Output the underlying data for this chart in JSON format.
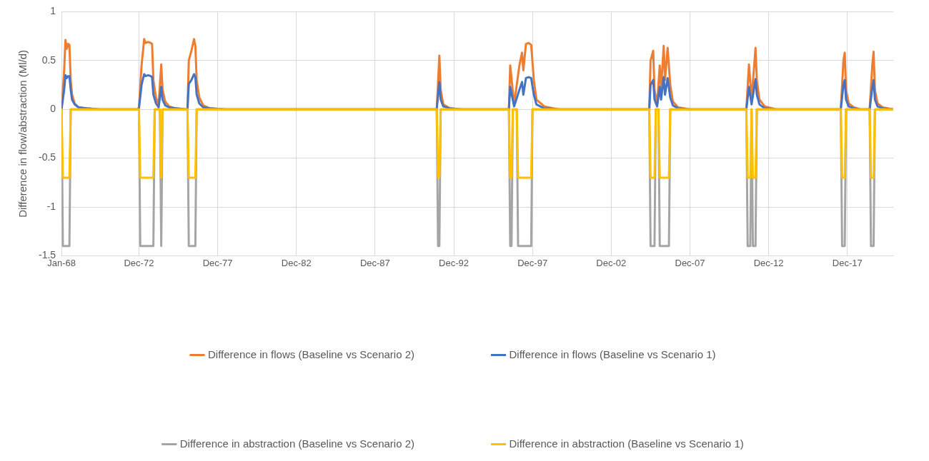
{
  "chart_data": {
    "type": "line",
    "ylabel": "Difference in flow/abstraction (Ml/d)",
    "xlim": [
      "1968-01",
      "2020-11"
    ],
    "xticks": [
      {
        "value": "1968-01",
        "label": "Jan-68"
      },
      {
        "value": "1972-12",
        "label": "Dec-72"
      },
      {
        "value": "1977-12",
        "label": "Dec-77"
      },
      {
        "value": "1982-12",
        "label": "Dec-82"
      },
      {
        "value": "1987-12",
        "label": "Dec-87"
      },
      {
        "value": "1992-12",
        "label": "Dec-92"
      },
      {
        "value": "1997-12",
        "label": "Dec-97"
      },
      {
        "value": "2002-12",
        "label": "Dec-02"
      },
      {
        "value": "2007-12",
        "label": "Dec-07"
      },
      {
        "value": "2012-12",
        "label": "Dec-12"
      },
      {
        "value": "2017-12",
        "label": "Dec-17"
      }
    ],
    "ylim": [
      -1.5,
      1
    ],
    "yticks": [
      -1.5,
      -1,
      -0.5,
      0,
      0.5,
      1
    ],
    "grid": true,
    "legend": "bottom",
    "marker": "none",
    "line_style": "solid",
    "series": [
      {
        "name": "Difference in flows (Baseline vs Scenario 2)",
        "color": "#ed7d31",
        "x": [
          "1968-01",
          "1968-03",
          "1968-04",
          "1968-05",
          "1968-06",
          "1968-07",
          "1968-08",
          "1968-09",
          "1968-11",
          "1969-02",
          "1969-08",
          "1970-06",
          "1972-11",
          "1972-12",
          "1973-02",
          "1973-04",
          "1973-05",
          "1973-07",
          "1973-09",
          "1973-10",
          "1973-11",
          "1974-01",
          "1974-03",
          "1974-05",
          "1974-06",
          "1974-08",
          "1974-11",
          "1975-04",
          "1975-12",
          "1976-01",
          "1976-02",
          "1976-04",
          "1976-06",
          "1976-07",
          "1976-08",
          "1976-10",
          "1977-01",
          "1977-06",
          "1978-06",
          "1991-11",
          "1992-01",
          "1992-02",
          "1992-04",
          "1992-09",
          "1993-06",
          "1996-06",
          "1996-07",
          "1996-10",
          "1997-02",
          "1997-04",
          "1997-05",
          "1997-07",
          "1997-09",
          "1997-11",
          "1998-01",
          "1998-03",
          "1998-09",
          "1999-08",
          "2005-05",
          "2005-06",
          "2005-08",
          "2005-09",
          "2005-11",
          "2006-01",
          "2006-02",
          "2006-04",
          "2006-05",
          "2006-07",
          "2006-09",
          "2006-11",
          "2007-03",
          "2007-12",
          "2011-07",
          "2011-09",
          "2011-11",
          "2012-02",
          "2012-03",
          "2012-05",
          "2012-09",
          "2013-06",
          "2017-07",
          "2017-09",
          "2017-10",
          "2017-11",
          "2018-01",
          "2018-05",
          "2018-10",
          "2019-05",
          "2019-07",
          "2019-08",
          "2019-09",
          "2019-11",
          "2020-03",
          "2020-11"
        ],
        "values": [
          0,
          0.4,
          0.71,
          0.62,
          0.67,
          0.66,
          0.3,
          0.15,
          0.06,
          0.02,
          0.01,
          0,
          0,
          0.02,
          0.45,
          0.72,
          0.68,
          0.69,
          0.68,
          0.67,
          0.3,
          0.12,
          0.05,
          0.46,
          0.2,
          0.08,
          0.03,
          0.01,
          0,
          0,
          0.5,
          0.6,
          0.72,
          0.65,
          0.3,
          0.12,
          0.04,
          0.01,
          0,
          0,
          0.55,
          0.2,
          0.05,
          0.01,
          0,
          0,
          0.45,
          0.05,
          0.45,
          0.58,
          0.4,
          0.67,
          0.68,
          0.66,
          0.3,
          0.1,
          0.03,
          0,
          0,
          0.5,
          0.6,
          0.2,
          0.05,
          0.45,
          0.2,
          0.65,
          0.3,
          0.63,
          0.25,
          0.08,
          0.02,
          0,
          0,
          0.46,
          0.1,
          0.63,
          0.3,
          0.1,
          0.03,
          0,
          0,
          0.5,
          0.58,
          0.2,
          0.06,
          0.02,
          0,
          0,
          0.45,
          0.59,
          0.2,
          0.06,
          0.02,
          0
        ]
      },
      {
        "name": "Difference in flows (Baseline vs Scenario 1)",
        "color": "#4472c4",
        "x": [
          "1968-01",
          "1968-03",
          "1968-04",
          "1968-05",
          "1968-06",
          "1968-07",
          "1968-08",
          "1968-09",
          "1968-11",
          "1969-02",
          "1969-08",
          "1970-06",
          "1972-11",
          "1972-12",
          "1973-02",
          "1973-04",
          "1973-05",
          "1973-07",
          "1973-09",
          "1973-10",
          "1973-11",
          "1974-01",
          "1974-03",
          "1974-05",
          "1974-06",
          "1974-08",
          "1974-11",
          "1975-04",
          "1975-12",
          "1976-01",
          "1976-02",
          "1976-04",
          "1976-06",
          "1976-07",
          "1976-08",
          "1976-10",
          "1977-01",
          "1977-06",
          "1978-06",
          "1991-11",
          "1992-01",
          "1992-02",
          "1992-04",
          "1992-09",
          "1993-06",
          "1996-06",
          "1996-07",
          "1996-10",
          "1997-02",
          "1997-04",
          "1997-05",
          "1997-07",
          "1997-09",
          "1997-11",
          "1998-01",
          "1998-03",
          "1998-09",
          "1999-08",
          "2005-05",
          "2005-06",
          "2005-08",
          "2005-09",
          "2005-11",
          "2006-01",
          "2006-02",
          "2006-04",
          "2006-05",
          "2006-07",
          "2006-09",
          "2006-11",
          "2007-03",
          "2007-12",
          "2011-07",
          "2011-09",
          "2011-11",
          "2012-02",
          "2012-03",
          "2012-05",
          "2012-09",
          "2013-06",
          "2017-07",
          "2017-09",
          "2017-10",
          "2017-11",
          "2018-01",
          "2018-05",
          "2018-10",
          "2019-05",
          "2019-07",
          "2019-08",
          "2019-09",
          "2019-11",
          "2020-03",
          "2020-11"
        ],
        "values": [
          0,
          0.2,
          0.35,
          0.32,
          0.34,
          0.34,
          0.2,
          0.1,
          0.05,
          0.02,
          0.01,
          0,
          0,
          0.01,
          0.25,
          0.36,
          0.34,
          0.35,
          0.34,
          0.33,
          0.15,
          0.06,
          0.02,
          0.23,
          0.1,
          0.04,
          0.02,
          0.01,
          0,
          0,
          0.26,
          0.3,
          0.36,
          0.33,
          0.15,
          0.06,
          0.02,
          0.01,
          0,
          0,
          0.28,
          0.1,
          0.03,
          0.01,
          0,
          0,
          0.23,
          0.03,
          0.2,
          0.28,
          0.15,
          0.32,
          0.33,
          0.32,
          0.15,
          0.05,
          0.01,
          0,
          0,
          0.25,
          0.3,
          0.1,
          0.03,
          0.23,
          0.1,
          0.33,
          0.15,
          0.32,
          0.12,
          0.04,
          0.01,
          0,
          0,
          0.23,
          0.05,
          0.31,
          0.15,
          0.05,
          0.01,
          0,
          0,
          0.25,
          0.3,
          0.1,
          0.03,
          0.01,
          0,
          0,
          0.22,
          0.3,
          0.1,
          0.03,
          0.01,
          0
        ]
      },
      {
        "name": "Difference in abstraction (Baseline vs Scenario 2)",
        "color": "#a5a5a5",
        "x": [
          "1968-01",
          "1968-02",
          "1968-07",
          "1968-08",
          "1972-12",
          "1973-01",
          "1973-11",
          "1973-12",
          "1974-04",
          "1974-05",
          "1974-06",
          "1976-01",
          "1976-02",
          "1976-07",
          "1976-08",
          "1991-11",
          "1991-12",
          "1992-01",
          "1992-02",
          "1996-06",
          "1996-07",
          "1996-08",
          "1996-09",
          "1996-12",
          "1997-01",
          "1997-11",
          "1997-12",
          "2005-05",
          "2005-06",
          "2005-09",
          "2005-10",
          "2005-12",
          "2006-01",
          "2006-08",
          "2006-09",
          "2011-07",
          "2011-08",
          "2011-10",
          "2011-11",
          "2011-12",
          "2012-02",
          "2012-03",
          "2017-07",
          "2017-08",
          "2017-10",
          "2017-11",
          "2019-05",
          "2019-06",
          "2019-08",
          "2019-09",
          "2020-11"
        ],
        "values": [
          0,
          -1.4,
          -1.4,
          0,
          0,
          -1.4,
          -1.4,
          0,
          0,
          -1.4,
          0,
          0,
          -1.4,
          -1.4,
          0,
          0,
          -1.4,
          -1.4,
          0,
          0,
          -1.4,
          -1.4,
          0,
          0,
          -1.4,
          -1.4,
          0,
          0,
          -1.4,
          -1.4,
          0,
          0,
          -1.4,
          -1.4,
          0,
          0,
          -1.4,
          -1.4,
          0,
          -1.4,
          -1.4,
          0,
          0,
          -1.4,
          -1.4,
          0,
          0,
          -1.4,
          -1.4,
          0,
          0
        ]
      },
      {
        "name": "Difference in abstraction (Baseline vs Scenario 1)",
        "color": "#ffc000",
        "x": [
          "1968-01",
          "1968-02",
          "1968-07",
          "1968-08",
          "1972-12",
          "1973-01",
          "1973-11",
          "1973-12",
          "1974-04",
          "1974-05",
          "1974-06",
          "1976-01",
          "1976-02",
          "1976-07",
          "1976-08",
          "1991-11",
          "1991-12",
          "1992-01",
          "1992-02",
          "1996-06",
          "1996-07",
          "1996-08",
          "1996-09",
          "1996-12",
          "1997-01",
          "1997-11",
          "1997-12",
          "2005-05",
          "2005-06",
          "2005-09",
          "2005-10",
          "2005-12",
          "2006-01",
          "2006-08",
          "2006-09",
          "2011-07",
          "2011-08",
          "2011-10",
          "2011-11",
          "2011-12",
          "2012-02",
          "2012-03",
          "2017-07",
          "2017-08",
          "2017-10",
          "2017-11",
          "2019-05",
          "2019-06",
          "2019-08",
          "2019-09",
          "2020-11"
        ],
        "values": [
          0,
          -0.7,
          -0.7,
          0,
          0,
          -0.7,
          -0.7,
          0,
          0,
          -0.7,
          0,
          0,
          -0.7,
          -0.7,
          0,
          0,
          -0.7,
          -0.7,
          0,
          0,
          -0.7,
          -0.7,
          0,
          0,
          -0.7,
          -0.7,
          0,
          0,
          -0.7,
          -0.7,
          0,
          0,
          -0.7,
          -0.7,
          0,
          0,
          -0.7,
          -0.7,
          0,
          -0.7,
          -0.7,
          0,
          0,
          -0.7,
          -0.7,
          0,
          0,
          -0.7,
          -0.7,
          0,
          0
        ]
      }
    ]
  }
}
